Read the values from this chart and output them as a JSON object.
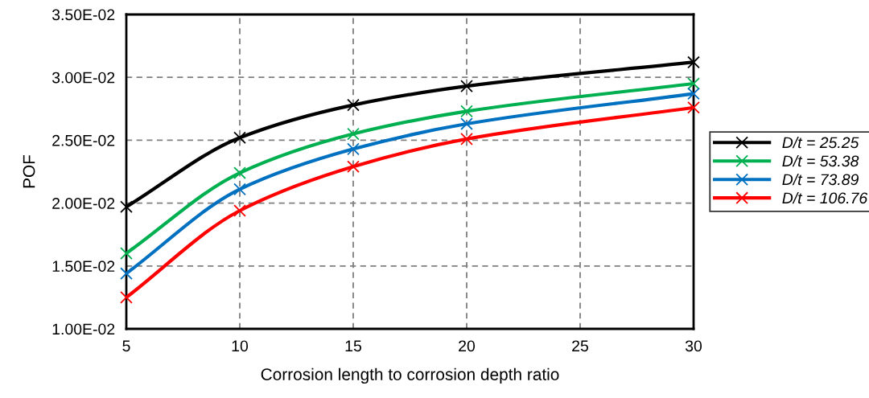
{
  "chart_data": {
    "type": "line",
    "xlabel": "Corrosion length to corrosion depth ratio",
    "ylabel": "POF",
    "x": [
      5,
      10,
      15,
      20,
      30
    ],
    "series": [
      {
        "name": "D/t = 25.25",
        "color": "#000000",
        "values": [
          0.0197,
          0.0252,
          0.0278,
          0.0293,
          0.0312
        ]
      },
      {
        "name": "D/t = 53.38",
        "color": "#00b050",
        "values": [
          0.016,
          0.0224,
          0.0255,
          0.0273,
          0.0295
        ]
      },
      {
        "name": "D/t = 73.89",
        "color": "#0070c0",
        "values": [
          0.0144,
          0.0211,
          0.0243,
          0.0263,
          0.0287
        ]
      },
      {
        "name": "D/t = 106.76",
        "color": "#ff0000",
        "values": [
          0.0125,
          0.0194,
          0.0229,
          0.0251,
          0.0276
        ]
      }
    ],
    "xlim": [
      5,
      30
    ],
    "xticks": [
      5,
      10,
      15,
      20,
      25,
      30
    ],
    "ylim": [
      0.01,
      0.035
    ],
    "yticks": [
      {
        "value": 0.01,
        "label": "1.00E-02"
      },
      {
        "value": 0.015,
        "label": "1.50E-02"
      },
      {
        "value": 0.02,
        "label": "2.00E-02"
      },
      {
        "value": 0.025,
        "label": "2.50E-02"
      },
      {
        "value": 0.03,
        "label": "3.00E-02"
      },
      {
        "value": 0.035,
        "label": "3.50E-02"
      }
    ],
    "grid": true,
    "legend": "right",
    "marker": "cross",
    "line_style": "solid"
  }
}
